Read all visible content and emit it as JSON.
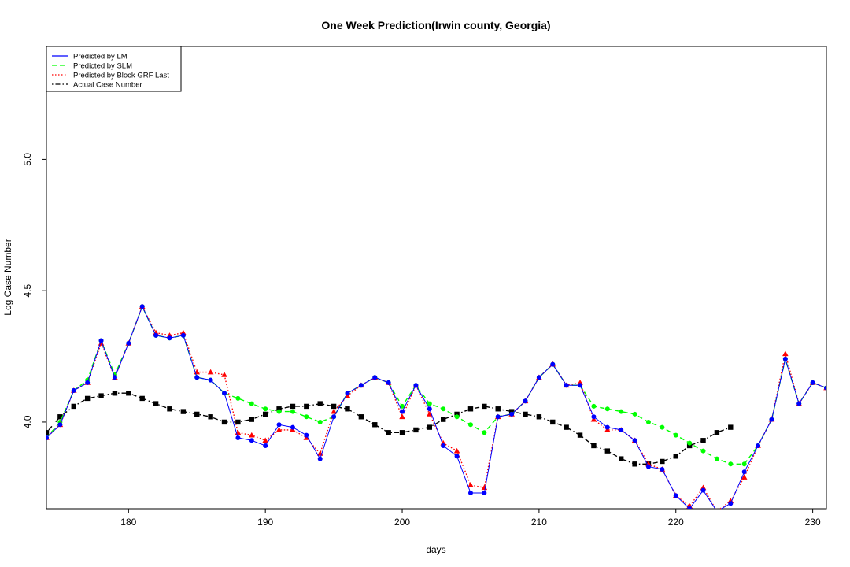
{
  "chart_data": {
    "type": "line",
    "title": "One Week Prediction(Irwin county, Georgia)",
    "xlabel": "days",
    "ylabel": "Log Case Number",
    "xlim": [
      174,
      231
    ],
    "ylim": [
      3.67,
      5.43
    ],
    "x_ticks": [
      180,
      190,
      200,
      210,
      220,
      230
    ],
    "y_ticks": [
      4.0,
      4.5,
      5.0
    ],
    "x_tick_labels": [
      "180",
      "190",
      "200",
      "210",
      "220",
      "230"
    ],
    "y_tick_labels": [
      "4.0",
      "4.5",
      "5.0"
    ],
    "grid": false,
    "legend_position": "top-left",
    "series": [
      {
        "name": "Predicted by LM",
        "color": "#0000ff",
        "line_style": "solid",
        "marker": "circle",
        "x": [
          174,
          175,
          176,
          177,
          178,
          179,
          180,
          181,
          182,
          183,
          184,
          185,
          186,
          187,
          188,
          189,
          190,
          191,
          192,
          193,
          194,
          195,
          196,
          197,
          198,
          199,
          200,
          201,
          202,
          203,
          204,
          205,
          206,
          207,
          208,
          209,
          210,
          211,
          212,
          213,
          214,
          215,
          216,
          217,
          218,
          219,
          220,
          221,
          222,
          223,
          224,
          225,
          226,
          227,
          228,
          229,
          230,
          231
        ],
        "y": [
          3.94,
          3.99,
          4.12,
          4.15,
          4.31,
          4.17,
          4.3,
          4.44,
          4.33,
          4.32,
          4.33,
          4.17,
          4.16,
          4.11,
          3.94,
          3.93,
          3.91,
          3.99,
          3.98,
          3.95,
          3.86,
          4.02,
          4.11,
          4.14,
          4.17,
          4.15,
          4.04,
          4.14,
          4.05,
          3.91,
          3.87,
          3.73,
          3.73,
          4.02,
          4.03,
          4.08,
          4.17,
          4.22,
          4.14,
          4.14,
          4.02,
          3.98,
          3.97,
          3.93,
          3.83,
          3.82,
          3.72,
          3.67,
          3.74,
          3.66,
          3.69,
          3.81,
          3.91,
          4.01,
          4.24,
          4.07,
          4.15,
          4.13
        ]
      },
      {
        "name": "Predicted by SLM",
        "color": "#00ff00",
        "line_style": "dashed",
        "marker": "circle",
        "x": [
          174,
          175,
          176,
          177,
          178,
          179,
          180,
          181,
          182,
          183,
          184,
          185,
          186,
          187,
          188,
          189,
          190,
          191,
          192,
          193,
          194,
          195,
          196,
          197,
          198,
          199,
          200,
          201,
          202,
          203,
          204,
          205,
          206,
          207,
          208,
          209,
          210,
          211,
          212,
          213,
          214,
          215,
          216,
          217,
          218,
          219,
          220,
          221,
          222,
          223,
          224,
          225,
          226,
          227,
          228,
          229,
          230,
          231
        ],
        "y": [
          3.94,
          4.0,
          4.12,
          4.16,
          4.31,
          4.18,
          4.3,
          4.44,
          4.33,
          4.32,
          4.33,
          4.17,
          4.16,
          4.11,
          4.09,
          4.07,
          4.05,
          4.04,
          4.04,
          4.02,
          4.0,
          4.02,
          4.11,
          4.14,
          4.17,
          4.15,
          4.06,
          4.14,
          4.07,
          4.05,
          4.02,
          3.99,
          3.96,
          4.02,
          4.03,
          4.08,
          4.17,
          4.22,
          4.14,
          4.14,
          4.06,
          4.05,
          4.04,
          4.03,
          4.0,
          3.98,
          3.95,
          3.92,
          3.89,
          3.86,
          3.84,
          3.84,
          3.91,
          4.01,
          4.24,
          4.07,
          4.15,
          4.13
        ]
      },
      {
        "name": "Predicted by Block GRF Last",
        "color": "#ff0000",
        "line_style": "dotted",
        "marker": "triangle",
        "x": [
          174,
          175,
          176,
          177,
          178,
          179,
          180,
          181,
          182,
          183,
          184,
          185,
          186,
          187,
          188,
          189,
          190,
          191,
          192,
          193,
          194,
          195,
          196,
          197,
          198,
          199,
          200,
          201,
          202,
          203,
          204,
          205,
          206,
          207,
          208,
          209,
          210,
          211,
          212,
          213,
          214,
          215,
          216,
          217,
          218,
          219,
          220,
          221,
          222,
          223,
          224,
          225,
          226,
          227,
          228,
          229,
          230,
          231
        ],
        "y": [
          3.94,
          3.99,
          4.12,
          4.15,
          4.3,
          4.17,
          4.3,
          4.44,
          4.34,
          4.33,
          4.34,
          4.19,
          4.19,
          4.18,
          3.96,
          3.95,
          3.93,
          3.97,
          3.97,
          3.94,
          3.88,
          4.04,
          4.1,
          4.14,
          4.17,
          4.15,
          4.02,
          4.14,
          4.03,
          3.92,
          3.89,
          3.76,
          3.75,
          4.02,
          4.03,
          4.08,
          4.17,
          4.22,
          4.14,
          4.15,
          4.01,
          3.97,
          3.97,
          3.93,
          3.84,
          3.82,
          3.72,
          3.68,
          3.75,
          3.66,
          3.7,
          3.79,
          3.91,
          4.01,
          4.26,
          4.07,
          4.15,
          4.13
        ]
      },
      {
        "name": "Actual Case Number",
        "color": "#000000",
        "line_style": "dotdash",
        "marker": "square",
        "x": [
          174,
          175,
          176,
          177,
          178,
          179,
          180,
          181,
          182,
          183,
          184,
          185,
          186,
          187,
          188,
          189,
          190,
          191,
          192,
          193,
          194,
          195,
          196,
          197,
          198,
          199,
          200,
          201,
          202,
          203,
          204,
          205,
          206,
          207,
          208,
          209,
          210,
          211,
          212,
          213,
          214,
          215,
          216,
          217,
          218,
          219,
          220,
          221,
          222,
          223,
          224
        ],
        "y": [
          3.96,
          4.02,
          4.06,
          4.09,
          4.1,
          4.11,
          4.11,
          4.09,
          4.07,
          4.05,
          4.04,
          4.03,
          4.02,
          4.0,
          4.0,
          4.01,
          4.03,
          4.05,
          4.06,
          4.06,
          4.07,
          4.06,
          4.05,
          4.02,
          3.99,
          3.96,
          3.96,
          3.97,
          3.98,
          4.01,
          4.03,
          4.05,
          4.06,
          4.05,
          4.04,
          4.03,
          4.02,
          4.0,
          3.98,
          3.95,
          3.91,
          3.89,
          3.86,
          3.84,
          3.84,
          3.85,
          3.87,
          3.91,
          3.93,
          3.96,
          3.98
        ]
      }
    ]
  }
}
